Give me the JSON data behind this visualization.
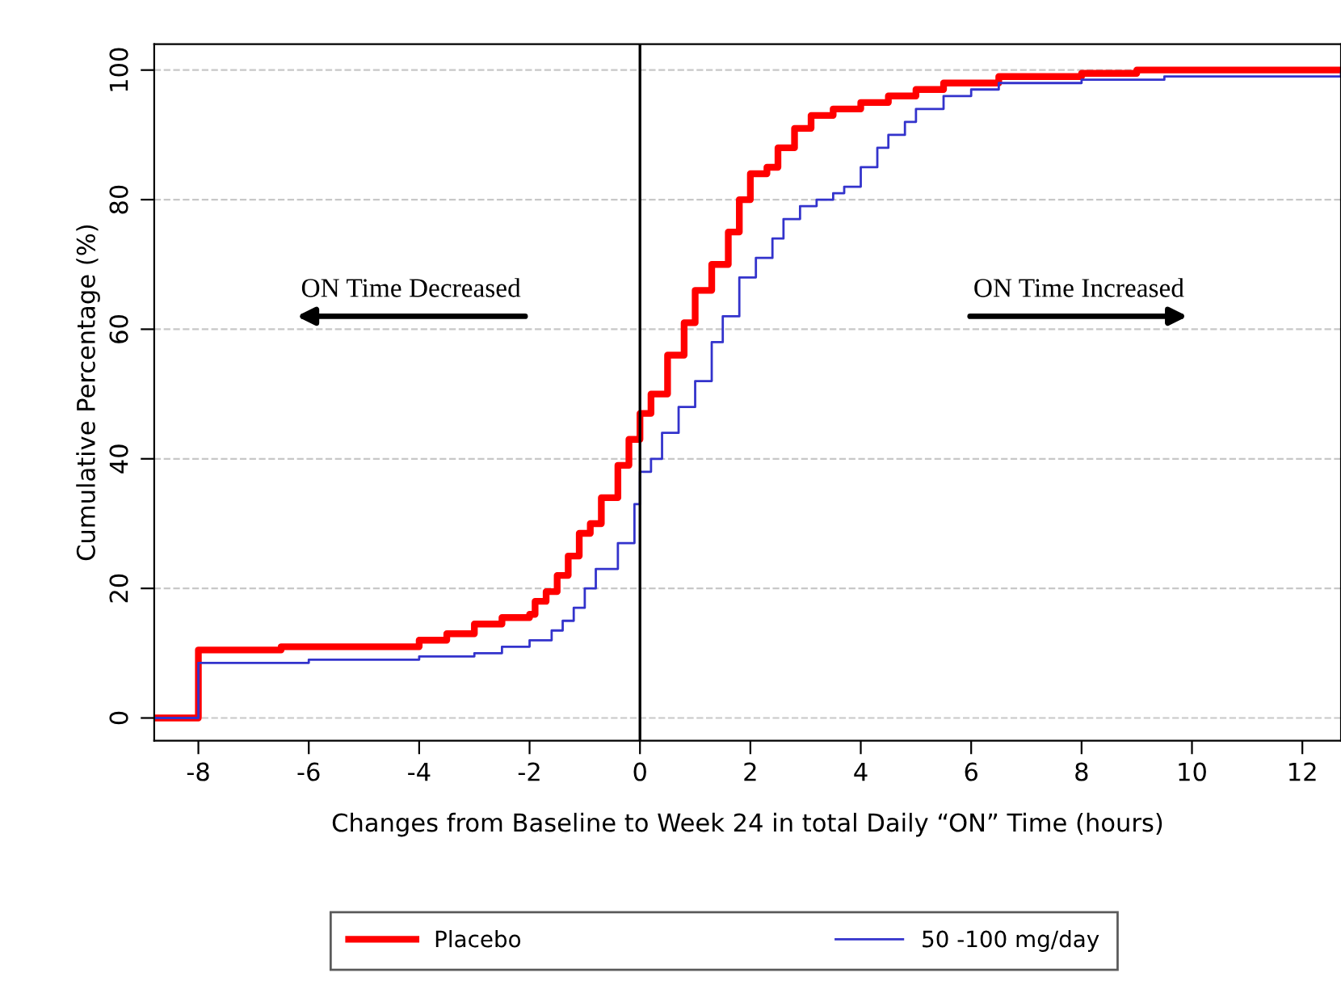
{
  "chart_data": {
    "type": "step",
    "xlabel": "Changes from Baseline to Week 24 in total Daily “ON” Time (hours)",
    "ylabel": "Cumulative Percentage (%)",
    "xlim": [
      -8.8,
      12.7
    ],
    "ylim": [
      -3.5,
      104
    ],
    "xticks": [
      -8,
      -6,
      -4,
      -2,
      0,
      2,
      4,
      6,
      8,
      10,
      12
    ],
    "yticks": [
      0,
      20,
      40,
      60,
      80,
      100
    ],
    "grid": "y",
    "legend": "bottom",
    "line_style": "solid",
    "marker": "none",
    "ref_lines": [
      {
        "axis": "x",
        "value": 0,
        "color": "#000000"
      }
    ],
    "annotations": [
      "ON Time Decreased",
      "ON Time Increased"
    ],
    "series": [
      {
        "name": "Placebo",
        "color": "#ff0000",
        "x": [
          -8.8,
          -8,
          -6.5,
          -4,
          -3.5,
          -3,
          -2.5,
          -2,
          -1.9,
          -1.7,
          -1.5,
          -1.3,
          -1.1,
          -0.9,
          -0.7,
          -0.4,
          -0.2,
          0,
          0.2,
          0.5,
          0.8,
          1,
          1.3,
          1.6,
          1.8,
          2,
          2.3,
          2.5,
          2.8,
          3.1,
          3.5,
          4,
          4.5,
          5,
          5.5,
          6.5,
          8,
          9,
          12.7
        ],
        "values": [
          0,
          10.5,
          11,
          12,
          13,
          14.5,
          15.5,
          16,
          18,
          19.5,
          22,
          25,
          28.5,
          30,
          34,
          39,
          43,
          47,
          50,
          56,
          61,
          66,
          70,
          75,
          80,
          84,
          85,
          88,
          91,
          93,
          94,
          95,
          96,
          97,
          98,
          99,
          99.5,
          100,
          100
        ]
      },
      {
        "name": "50 -100 mg/day",
        "color": "#3333cc",
        "x": [
          -8.8,
          -8,
          -6,
          -4,
          -3,
          -2.5,
          -2,
          -1.6,
          -1.4,
          -1.2,
          -1,
          -0.8,
          -0.4,
          -0.1,
          0,
          0.2,
          0.4,
          0.7,
          1,
          1.3,
          1.5,
          1.8,
          2.1,
          2.4,
          2.6,
          2.9,
          3.2,
          3.5,
          3.7,
          4,
          4.3,
          4.5,
          4.8,
          5,
          5.5,
          6,
          6.5,
          8,
          9.5,
          12.7
        ],
        "values": [
          0,
          8.5,
          9,
          9.5,
          10,
          11,
          12,
          13.5,
          15,
          17,
          20,
          23,
          27,
          33,
          38,
          40,
          44,
          48,
          52,
          58,
          62,
          68,
          71,
          74,
          77,
          79,
          80,
          81,
          82,
          85,
          88,
          90,
          92,
          94,
          96,
          97,
          98,
          98.5,
          99,
          99.5
        ]
      }
    ]
  }
}
